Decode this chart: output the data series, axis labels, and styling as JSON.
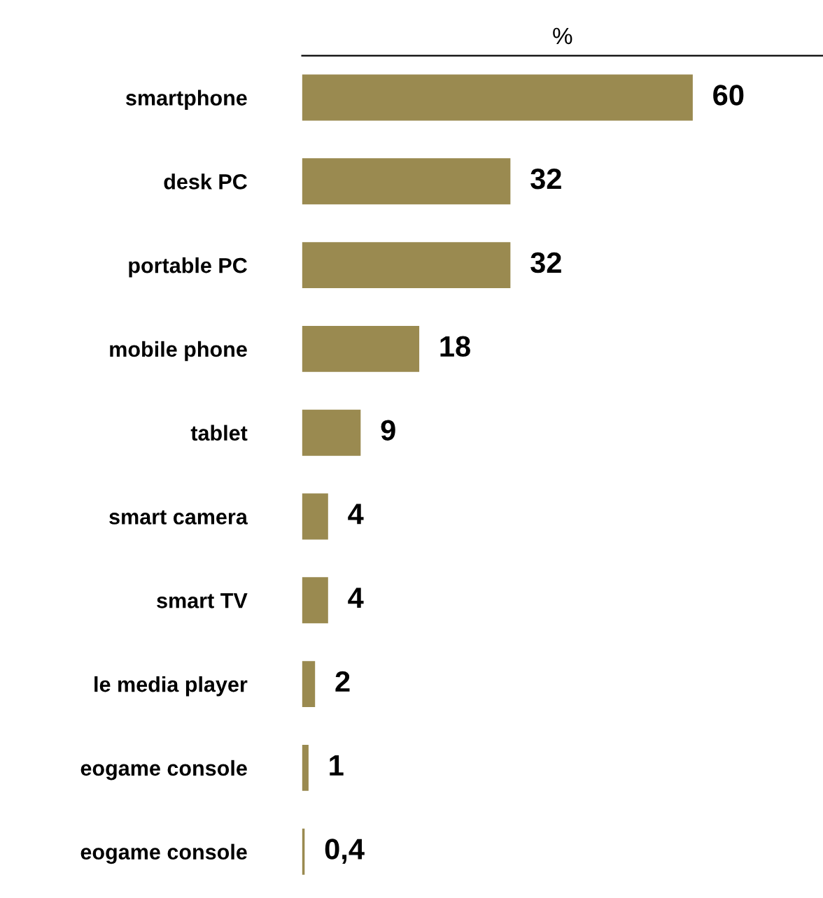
{
  "chart_data": {
    "type": "bar",
    "orientation": "horizontal",
    "xlabel": "%",
    "categories": [
      "smartphone",
      "desk PC",
      "portable PC",
      "mobile phone",
      "tablet",
      "smart camera",
      "smart TV",
      "le media player",
      "eogame console",
      "eogame console"
    ],
    "values": [
      60,
      32,
      32,
      18,
      9,
      4,
      4,
      2,
      1,
      0.4
    ],
    "value_labels": [
      "60",
      "32",
      "32",
      "18",
      "9",
      "4",
      "4",
      "2",
      "1",
      "0,4"
    ],
    "color": "#9a8a50",
    "xlim": [
      0,
      80
    ],
    "grid": false,
    "legend": false
  }
}
